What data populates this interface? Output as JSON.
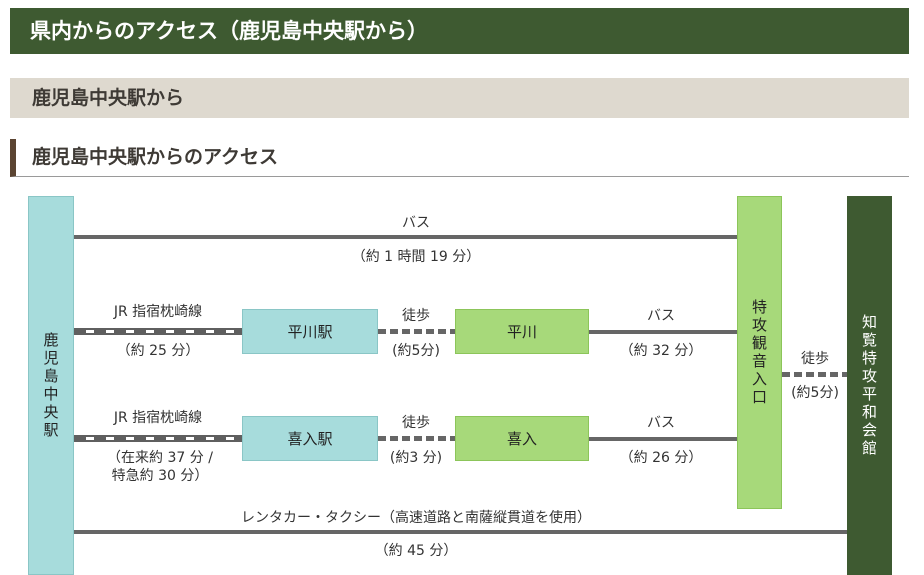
{
  "section_title": "県内からのアクセス（鹿児島中央駅から）",
  "sub_title": "鹿児島中央駅から",
  "access_title": "鹿児島中央駅からのアクセス",
  "colors": {
    "header_green": "#3e5a31",
    "station_teal": "#a7dcdc",
    "stop_green": "#a7d97a",
    "museum_green": "#3e5a31",
    "line_gray": "#666666"
  },
  "nodes": {
    "origin": "鹿児島中央駅",
    "hirakawa_station": "平川駅",
    "hirakawa_stop": "平川",
    "kiire_station": "喜入駅",
    "kiire_stop": "喜入",
    "tokko_stop": "特攻観音入口",
    "museum": "知覧特攻平和会館"
  },
  "routes": {
    "bus_direct": {
      "mode": "バス",
      "time": "（約 1 時間 19 分）"
    },
    "jr_hirakawa": {
      "mode": "JR 指宿枕崎線",
      "time": "（約 25 分）"
    },
    "walk_hirakawa": {
      "mode": "徒歩",
      "time": "(約5分)"
    },
    "bus_hirakawa": {
      "mode": "バス",
      "time": "（約 32 分）"
    },
    "jr_kiire": {
      "mode": "JR 指宿枕崎線",
      "time": "（在来約 37 分 /\n特急約 30 分）"
    },
    "walk_kiire": {
      "mode": "徒歩",
      "time": "(約3 分)"
    },
    "bus_kiire": {
      "mode": "バス",
      "time": "（約 26 分）"
    },
    "walk_final": {
      "mode": "徒歩",
      "time": "(約5分)"
    },
    "car": {
      "mode": "レンタカー・タクシー（高速道路と南薩縦貫道を使用）",
      "time": "（約 45 分）"
    }
  }
}
